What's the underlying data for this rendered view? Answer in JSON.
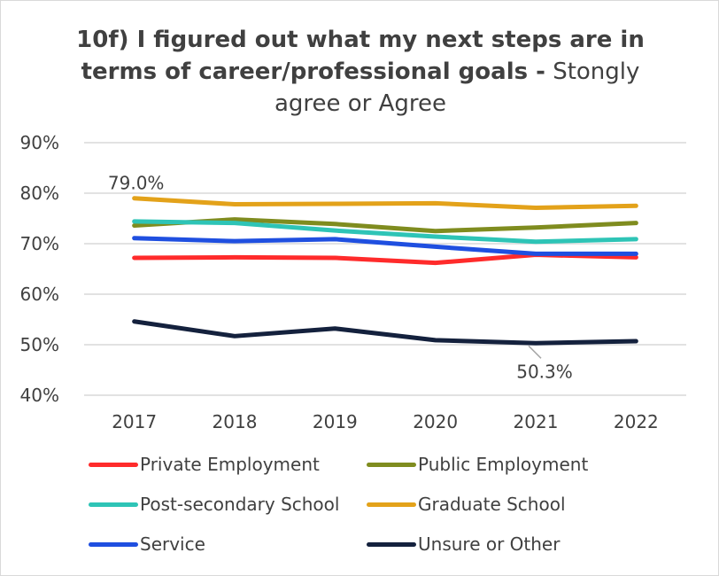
{
  "chart_data": {
    "type": "line",
    "title_bold": "10f) I figured out what my next steps are in terms of career/professional goals -",
    "title_normal": "Stongly agree or Agree",
    "x": [
      "2017",
      "2018",
      "2019",
      "2020",
      "2021",
      "2022"
    ],
    "y_ticks": [
      "40%",
      "50%",
      "60%",
      "70%",
      "80%",
      "90%"
    ],
    "ylim": [
      40,
      90
    ],
    "grid": true,
    "legend_position": "bottom",
    "series": [
      {
        "name": "Private Employment",
        "color": "#ff2b2b",
        "values": [
          67.2,
          67.3,
          67.2,
          66.2,
          67.8,
          67.3
        ]
      },
      {
        "name": "Public Employment",
        "color": "#7f8c1f",
        "values": [
          73.6,
          74.8,
          73.9,
          72.5,
          73.2,
          74.1
        ]
      },
      {
        "name": "Post-secondary School",
        "color": "#2ec4b6",
        "values": [
          74.4,
          74.1,
          72.6,
          71.4,
          70.4,
          70.9
        ]
      },
      {
        "name": "Graduate School",
        "color": "#e3a21a",
        "values": [
          79.0,
          77.8,
          77.9,
          78.0,
          77.1,
          77.5
        ]
      },
      {
        "name": "Service",
        "color": "#1f4fe0",
        "values": [
          71.1,
          70.5,
          70.9,
          69.4,
          68.0,
          68.0
        ]
      },
      {
        "name": "Unsure or Other",
        "color": "#14213d",
        "values": [
          54.6,
          51.7,
          53.2,
          50.9,
          50.3,
          50.7
        ]
      }
    ],
    "annotations": [
      {
        "text": "79.0%",
        "series": "Graduate School",
        "x": "2017"
      },
      {
        "text": "50.3%",
        "series": "Unsure or Other",
        "x": "2021"
      }
    ]
  }
}
